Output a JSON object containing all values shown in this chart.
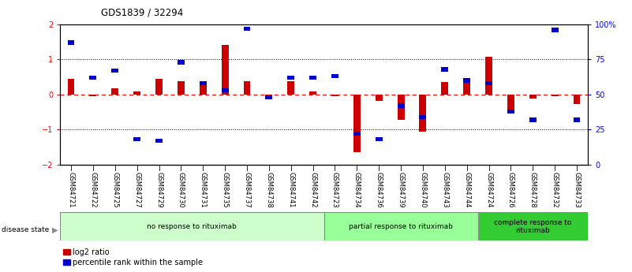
{
  "title": "GDS1839 / 32294",
  "samples": [
    "GSM84721",
    "GSM84722",
    "GSM84725",
    "GSM84727",
    "GSM84729",
    "GSM84730",
    "GSM84731",
    "GSM84735",
    "GSM84737",
    "GSM84738",
    "GSM84741",
    "GSM84742",
    "GSM84723",
    "GSM84734",
    "GSM84736",
    "GSM84739",
    "GSM84740",
    "GSM84743",
    "GSM84744",
    "GSM84724",
    "GSM84726",
    "GSM84728",
    "GSM84732",
    "GSM84733"
  ],
  "log2_ratio": [
    0.45,
    -0.05,
    0.18,
    0.08,
    0.45,
    0.38,
    0.28,
    1.42,
    0.38,
    -0.07,
    0.38,
    0.08,
    -0.05,
    -1.65,
    -0.18,
    -0.72,
    -1.05,
    0.35,
    0.45,
    1.08,
    -0.42,
    -0.12,
    -0.05,
    -0.28
  ],
  "percentile_rank_pct": [
    87,
    62,
    67,
    18,
    17,
    73,
    58,
    53,
    97,
    48,
    62,
    62,
    63,
    22,
    18,
    42,
    34,
    68,
    60,
    58,
    38,
    32,
    96,
    32
  ],
  "groups": [
    {
      "label": "no response to rituximab",
      "start": 0,
      "end": 12,
      "color": "#ccffcc"
    },
    {
      "label": "partial response to rituximab",
      "start": 12,
      "end": 19,
      "color": "#99ff99"
    },
    {
      "label": "complete response to\nrituximab",
      "start": 19,
      "end": 24,
      "color": "#33cc33"
    }
  ],
  "bar_color_red": "#cc0000",
  "bar_color_blue": "#0000cc",
  "ylim_left": [
    -2,
    2
  ],
  "ylim_right": [
    0,
    100
  ],
  "yticks_left": [
    -2,
    -1,
    0,
    1,
    2
  ],
  "yticks_right": [
    0,
    25,
    50,
    75,
    100
  ],
  "legend_labels": [
    "log2 ratio",
    "percentile rank within the sample"
  ],
  "legend_colors": [
    "#cc0000",
    "#0000cc"
  ]
}
